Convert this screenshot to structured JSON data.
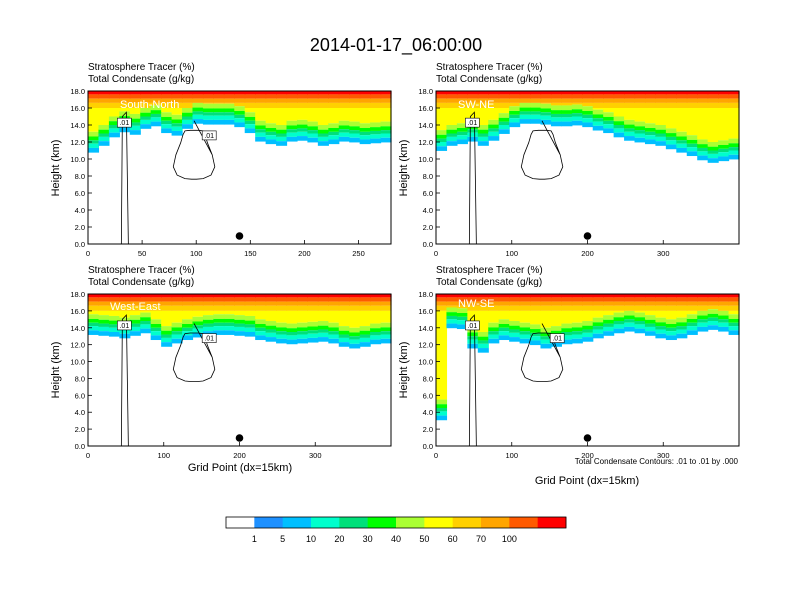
{
  "title": "2014-01-17_06:00:00",
  "colors": {
    "levels": [
      "#ffffff",
      "#1e90ff",
      "#00bfff",
      "#00ffcc",
      "#00e07a",
      "#00ff00",
      "#aaff33",
      "#ffff00",
      "#ffd000",
      "#ffa500",
      "#ff5a00",
      "#ff0000"
    ],
    "contour": "#000000"
  },
  "chart_data": [
    {
      "type": "heatmap",
      "title_line1": "Stratosphere Tracer   (%)",
      "title_line2": "Total Condensate   (g/kg)",
      "label": "South-North",
      "ylabel": "Height (km)",
      "xlabel": "",
      "xlim": [
        0,
        280
      ],
      "ylim": [
        0,
        18
      ],
      "x_ticks": [
        "0",
        "50",
        "100",
        "150",
        "200",
        "250"
      ],
      "y_ticks": [
        "0.0",
        "2.0",
        "4.0",
        "6.0",
        "8.0",
        "10.0",
        "12.0",
        "14.0",
        "16.0",
        "18.0"
      ],
      "contour_labels": [
        ".01",
        ".01"
      ],
      "marker_x": 140,
      "tracer_base_km": [
        13.2,
        14.0,
        15.0,
        15.6,
        15.3,
        16.0,
        16.3,
        15.5,
        15.2,
        16.0,
        16.6,
        16.5,
        16.5,
        16.5,
        16.2,
        15.5,
        14.5,
        14.2,
        14.0,
        14.5,
        14.6,
        14.4,
        14.0,
        14.2,
        14.5,
        14.4,
        14.2,
        14.3,
        14.4
      ]
    },
    {
      "type": "heatmap",
      "title_line1": "Stratosphere Tracer   (%)",
      "title_line2": "Total Condensate   (g/kg)",
      "label": "SW-NE",
      "ylabel": "Height (km)",
      "xlabel": "",
      "xlim": [
        0,
        400
      ],
      "ylim": [
        0,
        18
      ],
      "x_ticks": [
        "0",
        "100",
        "200",
        "300"
      ],
      "y_ticks": [
        "0.0",
        "2.0",
        "4.0",
        "6.0",
        "8.0",
        "10.0",
        "12.0",
        "14.0",
        "16.0",
        "18.0"
      ],
      "contour_labels": [
        ".01"
      ],
      "marker_x": 200,
      "tracer_base_km": [
        13.4,
        14.0,
        14.2,
        14.5,
        14.0,
        14.6,
        15.4,
        16.2,
        16.6,
        16.6,
        16.5,
        16.3,
        16.3,
        16.4,
        16.2,
        15.8,
        15.5,
        15.0,
        14.6,
        14.4,
        14.2,
        14.0,
        13.6,
        13.2,
        12.8,
        12.3,
        12.0,
        12.2,
        12.4
      ]
    },
    {
      "type": "heatmap",
      "title_line1": "Stratosphere Tracer   (%)",
      "title_line2": "Total Condensate   (g/kg)",
      "label": "West-East",
      "ylabel": "Height (km)",
      "xlabel": "Grid Point (dx=15km)",
      "xlim": [
        0,
        400
      ],
      "ylim": [
        0,
        18
      ],
      "x_ticks": [
        "0",
        "100",
        "200",
        "300"
      ],
      "y_ticks": [
        "0.0",
        "2.0",
        "4.0",
        "6.0",
        "8.0",
        "10.0",
        "12.0",
        "14.0",
        "16.0",
        "18.0"
      ],
      "contour_labels": [
        ".01",
        ".01"
      ],
      "marker_x": 200,
      "tracer_base_km": [
        15.6,
        15.5,
        15.4,
        15.2,
        15.5,
        15.8,
        15.0,
        14.2,
        14.6,
        15.0,
        15.3,
        15.5,
        15.6,
        15.6,
        15.5,
        15.4,
        15.0,
        14.8,
        14.6,
        14.5,
        14.6,
        14.7,
        14.8,
        14.6,
        14.2,
        14.0,
        14.2,
        14.5,
        14.6
      ]
    },
    {
      "type": "heatmap",
      "title_line1": "Stratosphere Tracer   (%)",
      "title_line2": "Total Condensate   (g/kg)",
      "label": "NW-SE",
      "ylabel": "Height (km)",
      "xlabel": "Grid Point (dx=15km)",
      "xlim": [
        0,
        400
      ],
      "ylim": [
        0,
        18
      ],
      "x_ticks": [
        "0",
        "100",
        "200",
        "300"
      ],
      "y_ticks": [
        "0.0",
        "2.0",
        "4.0",
        "6.0",
        "8.0",
        "10.0",
        "12.0",
        "14.0",
        "16.0",
        "18.0"
      ],
      "contour_labels": [
        ".01",
        ".01"
      ],
      "marker_x": 200,
      "tracer_base_km": [
        5.5,
        16.4,
        16.3,
        14.0,
        13.5,
        14.6,
        15.0,
        14.8,
        14.6,
        14.4,
        14.0,
        14.2,
        14.5,
        14.6,
        14.8,
        15.2,
        15.5,
        15.8,
        16.0,
        15.8,
        15.5,
        15.2,
        15.0,
        15.2,
        15.6,
        16.0,
        16.2,
        16.0,
        15.6
      ],
      "footnote": "Total Condensate Contours: .01 to .01 by .000"
    }
  ],
  "colorbar": {
    "labels": [
      "1",
      "5",
      "10",
      "20",
      "30",
      "40",
      "50",
      "60",
      "70",
      "100"
    ]
  }
}
